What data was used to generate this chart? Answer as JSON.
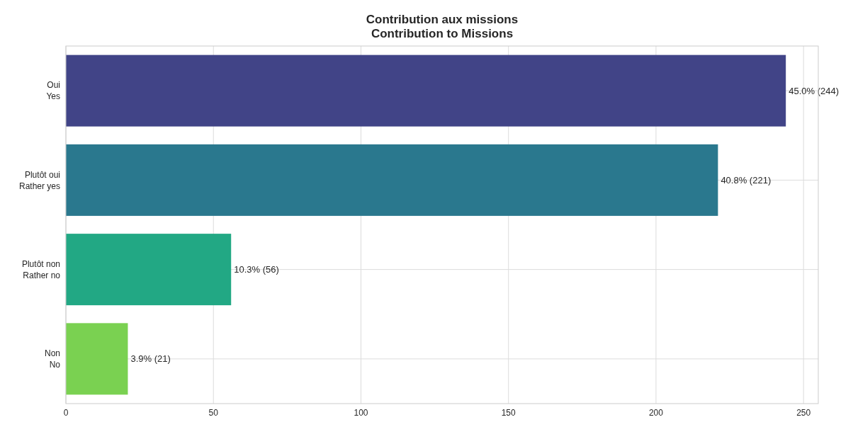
{
  "chart_data": {
    "type": "bar",
    "orientation": "horizontal",
    "title": "Contribution aux missions\nContribution to Missions",
    "categories": [
      "Oui\nYes",
      "Plutôt oui\nRather yes",
      "Plutôt non\nRather no",
      "Non\nNo"
    ],
    "values": [
      244,
      221,
      56,
      21
    ],
    "colors": [
      "#414487",
      "#2a788e",
      "#22a884",
      "#7ad151"
    ],
    "value_labels": [
      "45.0% (244)",
      "40.8% (221)",
      "10.3% (56)",
      "3.9% (21)"
    ],
    "xlim": [
      0,
      255
    ],
    "xticks": [
      0,
      50,
      100,
      150,
      200,
      250
    ],
    "grid": true
  }
}
